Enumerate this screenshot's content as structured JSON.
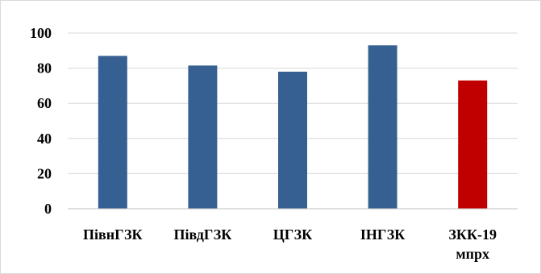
{
  "chart_data": {
    "type": "bar",
    "categories": [
      "ПівнГЗК",
      "ПівдГЗК",
      "ЦГЗК",
      "ІНГЗК",
      "ЗКК-19 мпрх"
    ],
    "values": [
      87,
      81.5,
      78,
      93,
      73
    ],
    "bar_colors": [
      "#376092",
      "#376092",
      "#376092",
      "#376092",
      "#c00000"
    ],
    "ylim": [
      0,
      100
    ],
    "yticks": [
      0,
      20,
      40,
      60,
      80,
      100
    ],
    "grid": true,
    "legend": "none",
    "title": "",
    "xlabel": "",
    "ylabel": ""
  }
}
